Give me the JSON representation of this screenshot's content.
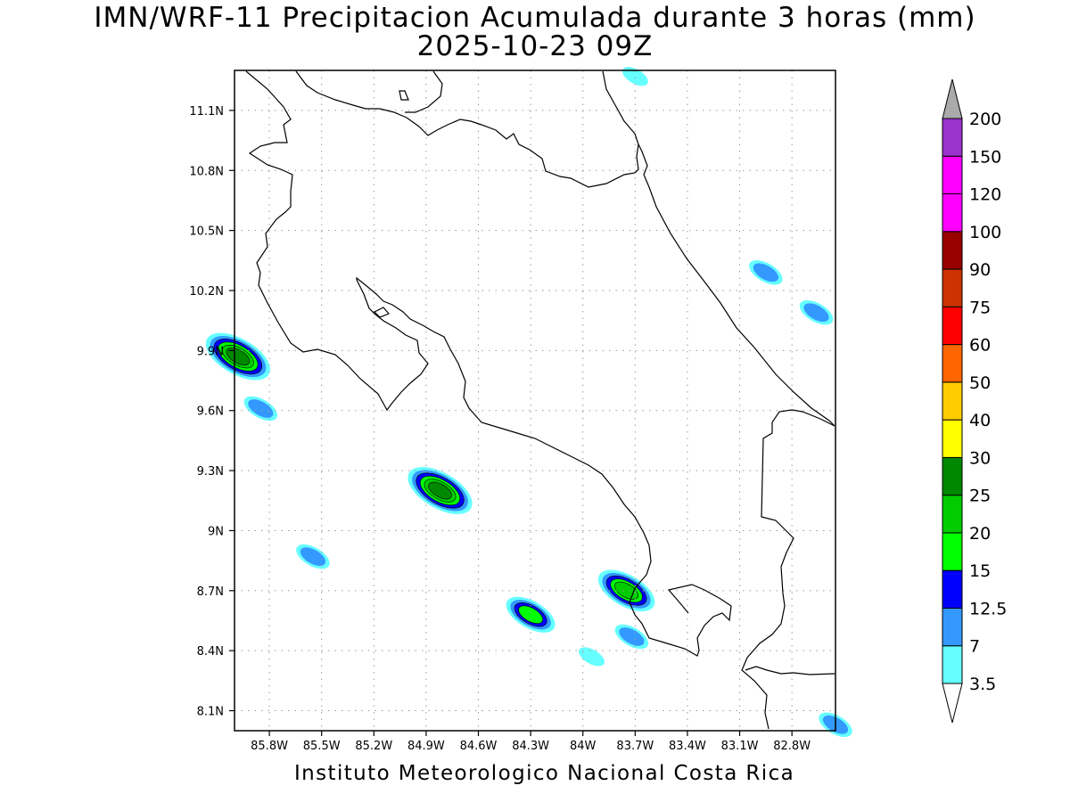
{
  "title_line1": "IMN/WRF-11 Precipitacion Acumulada durante 3 horas (mm)",
  "title_line2": "2025-10-23 09Z",
  "footer": "Instituto Meteorologico Nacional Costa Rica",
  "map": {
    "lon_range": [
      -86.0,
      -82.55
    ],
    "lat_range": [
      8.0,
      11.3
    ],
    "lon_ticks": [
      -85.8,
      -85.5,
      -85.2,
      -84.9,
      -84.6,
      -84.3,
      -84.0,
      -83.7,
      -83.4,
      -83.1,
      -82.8
    ],
    "lon_tick_labels": [
      "85.8W",
      "85.5W",
      "85.2W",
      "84.9W",
      "84.6W",
      "84.3W",
      "84W",
      "83.7W",
      "83.4W",
      "83.1W",
      "82.8W"
    ],
    "lat_ticks": [
      8.1,
      8.4,
      8.7,
      9.0,
      9.3,
      9.6,
      9.9,
      10.2,
      10.5,
      10.8,
      11.1
    ],
    "lat_tick_labels": [
      "8.1N",
      "8.4N",
      "8.7N",
      "9N",
      "9.3N",
      "9.6N",
      "9.9N",
      "10.2N",
      "10.5N",
      "10.8N",
      "11.1N"
    ],
    "grid": "dotted"
  },
  "colorbar": {
    "labels": [
      "3.5",
      "7",
      "12.5",
      "15",
      "20",
      "25",
      "30",
      "40",
      "50",
      "60",
      "75",
      "90",
      "100",
      "120",
      "150",
      "200"
    ],
    "colors": [
      "#66ffff",
      "#3399ff",
      "#0000ff",
      "#00ff00",
      "#00cc00",
      "#008800",
      "#ffff00",
      "#ffcc00",
      "#ff6600",
      "#ff0000",
      "#cc3300",
      "#990000",
      "#ff00ff",
      "#ff00ff",
      "#9933cc",
      "#f2f2f2"
    ],
    "over_color": "#aaaaaa",
    "under_color": "#ffffff"
  },
  "precip_cells": [
    {
      "lon": -85.98,
      "lat": 9.87,
      "max_mm": 25
    },
    {
      "lon": -85.85,
      "lat": 9.61,
      "max_mm": 7
    },
    {
      "lon": -84.82,
      "lat": 9.2,
      "max_mm": 25
    },
    {
      "lon": -85.55,
      "lat": 8.87,
      "max_mm": 7
    },
    {
      "lon": -84.3,
      "lat": 8.58,
      "max_mm": 15
    },
    {
      "lon": -83.75,
      "lat": 8.7,
      "max_mm": 20
    },
    {
      "lon": -83.72,
      "lat": 8.47,
      "max_mm": 7
    },
    {
      "lon": -82.95,
      "lat": 10.29,
      "max_mm": 7
    },
    {
      "lon": -82.66,
      "lat": 10.09,
      "max_mm": 7
    },
    {
      "lon": -83.7,
      "lat": 11.27,
      "max_mm": 3.5
    },
    {
      "lon": -83.95,
      "lat": 8.37,
      "max_mm": 3.5
    },
    {
      "lon": -82.55,
      "lat": 8.03,
      "max_mm": 7
    }
  ]
}
